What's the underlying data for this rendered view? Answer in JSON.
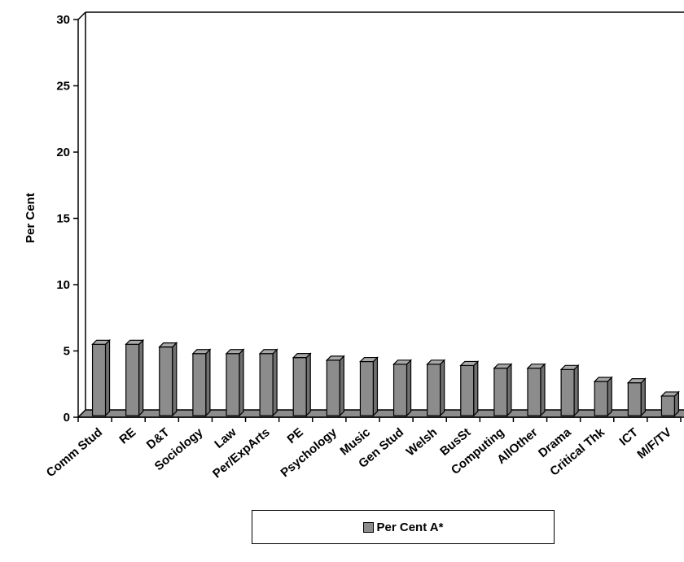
{
  "chart_data": {
    "type": "bar",
    "ylabel": "Per Cent",
    "xlabel": "",
    "ylim": [
      0,
      30
    ],
    "yticks": [
      0,
      5,
      10,
      15,
      20,
      25,
      30
    ],
    "grid": false,
    "legend_position": "bottom",
    "style": "3d",
    "categories": [
      "Comm Stud",
      "RE",
      "D&T",
      "Sociology",
      "Law",
      "Per/ExpArts",
      "PE",
      "Psychology",
      "Music",
      "Gen Stud",
      "Welsh",
      "BusSt",
      "Computing",
      "AllOther",
      "Drama",
      "Critical Thk",
      "ICT",
      "M/F/TV"
    ],
    "series": [
      {
        "name": "Per Cent A*",
        "color": "#8c8c8c",
        "values": [
          5.5,
          5.5,
          5.3,
          4.8,
          4.8,
          4.8,
          4.5,
          4.3,
          4.2,
          4.0,
          4.0,
          3.9,
          3.7,
          3.7,
          3.6,
          2.7,
          2.6,
          1.6
        ]
      }
    ]
  }
}
